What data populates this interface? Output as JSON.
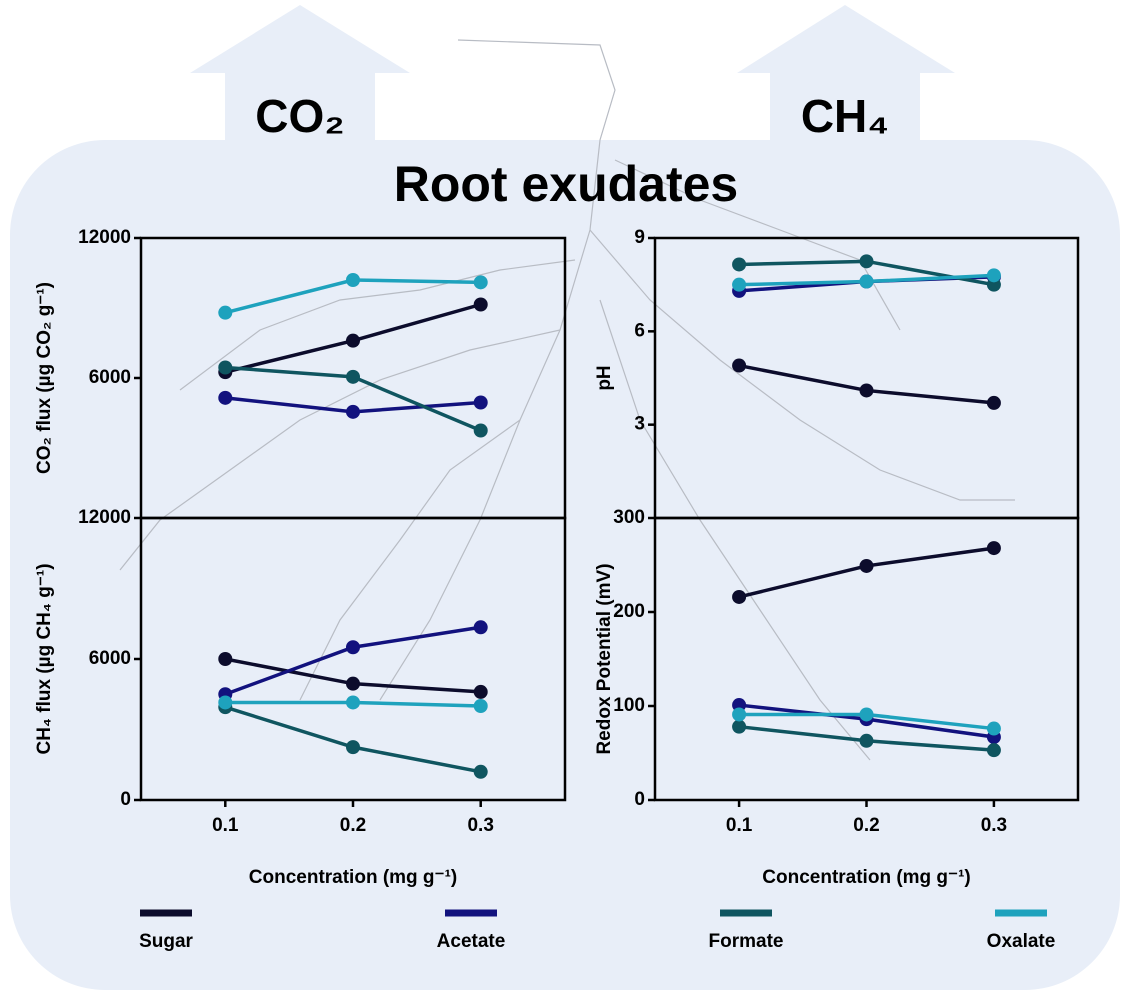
{
  "figure": {
    "title": "Root exudates",
    "left_arrow": "CO₂",
    "right_arrow": "CH₄"
  },
  "chart_data": [
    {
      "type": "line",
      "ylabel": "CO₂ flux (µg CO₂ g⁻¹)",
      "x": [
        0.1,
        0.2,
        0.3
      ],
      "xlim": [
        0.034,
        0.366
      ],
      "ylim": [
        0,
        12000
      ],
      "yticks": [
        6000,
        12000
      ],
      "series": [
        {
          "name": "Sugar",
          "color": "#0c0c2c",
          "values": [
            6250,
            7600,
            9150
          ]
        },
        {
          "name": "Acetate",
          "color": "#12127e",
          "values": [
            5150,
            4550,
            4950
          ]
        },
        {
          "name": "Formate",
          "color": "#0f5560",
          "values": [
            6450,
            6050,
            3750
          ]
        },
        {
          "name": "Oxalate",
          "color": "#1ea2bd",
          "values": [
            8800,
            10200,
            10100
          ]
        }
      ]
    },
    {
      "type": "line",
      "ylabel": "CH₄ flux (µg CH₄ g⁻¹)",
      "xlabel": "Concentration (mg g⁻¹)",
      "x": [
        0.1,
        0.2,
        0.3
      ],
      "xlim": [
        0.034,
        0.366
      ],
      "xticks": [
        0.1,
        0.2,
        0.3
      ],
      "ylim": [
        0,
        12000
      ],
      "yticks": [
        0,
        6000,
        12000
      ],
      "series": [
        {
          "name": "Sugar",
          "color": "#0c0c2c",
          "values": [
            6000,
            4950,
            4600
          ]
        },
        {
          "name": "Acetate",
          "color": "#12127e",
          "values": [
            4500,
            6500,
            7350
          ]
        },
        {
          "name": "Formate",
          "color": "#0f5560",
          "values": [
            3950,
            2250,
            1200
          ]
        },
        {
          "name": "Oxalate",
          "color": "#1ea2bd",
          "values": [
            4150,
            4150,
            4000
          ]
        }
      ]
    },
    {
      "type": "line",
      "ylabel": "pH",
      "x": [
        0.1,
        0.2,
        0.3
      ],
      "xlim": [
        0.034,
        0.366
      ],
      "ylim": [
        0,
        9
      ],
      "yticks": [
        3,
        6,
        9
      ],
      "series": [
        {
          "name": "Sugar",
          "color": "#0c0c2c",
          "values": [
            4.9,
            4.1,
            3.7
          ]
        },
        {
          "name": "Acetate",
          "color": "#12127e",
          "values": [
            7.3,
            7.6,
            7.75
          ]
        },
        {
          "name": "Formate",
          "color": "#0f5560",
          "values": [
            8.15,
            8.25,
            7.5
          ]
        },
        {
          "name": "Oxalate",
          "color": "#1ea2bd",
          "values": [
            7.5,
            7.6,
            7.8
          ]
        }
      ]
    },
    {
      "type": "line",
      "ylabel": "Redox Potential (mV)",
      "xlabel": "Concentration (mg g⁻¹)",
      "x": [
        0.1,
        0.2,
        0.3
      ],
      "xlim": [
        0.034,
        0.366
      ],
      "xticks": [
        0.1,
        0.2,
        0.3
      ],
      "ylim": [
        0,
        300
      ],
      "yticks": [
        0,
        100,
        200,
        300
      ],
      "series": [
        {
          "name": "Sugar",
          "color": "#0c0c2c",
          "values": [
            216,
            249,
            268
          ]
        },
        {
          "name": "Acetate",
          "color": "#12127e",
          "values": [
            101,
            86,
            67
          ]
        },
        {
          "name": "Formate",
          "color": "#0f5560",
          "values": [
            78,
            63,
            53
          ]
        },
        {
          "name": "Oxalate",
          "color": "#1ea2bd",
          "values": [
            91,
            91,
            76
          ]
        }
      ]
    }
  ]
}
